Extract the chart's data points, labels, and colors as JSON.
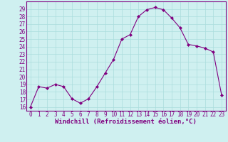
{
  "x": [
    0,
    1,
    2,
    3,
    4,
    5,
    6,
    7,
    8,
    9,
    10,
    11,
    12,
    13,
    14,
    15,
    16,
    17,
    18,
    19,
    20,
    21,
    22,
    23
  ],
  "y": [
    16,
    18.7,
    18.5,
    19.0,
    18.7,
    17.1,
    16.5,
    17.1,
    18.7,
    20.5,
    22.3,
    25.0,
    25.6,
    28.0,
    28.9,
    29.2,
    28.9,
    27.8,
    26.5,
    24.3,
    24.1,
    23.8,
    23.3,
    17.6
  ],
  "line_color": "#800080",
  "marker": "D",
  "marker_size": 2,
  "bg_color": "#cff0f0",
  "grid_color": "#aadddd",
  "xlabel": "Windchill (Refroidissement éolien,°C)",
  "xlabel_fontsize": 6.5,
  "ylabel_ticks": [
    16,
    17,
    18,
    19,
    20,
    21,
    22,
    23,
    24,
    25,
    26,
    27,
    28,
    29
  ],
  "ylim": [
    15.5,
    30.0
  ],
  "xlim": [
    -0.5,
    23.5
  ],
  "tick_fontsize": 5.5
}
